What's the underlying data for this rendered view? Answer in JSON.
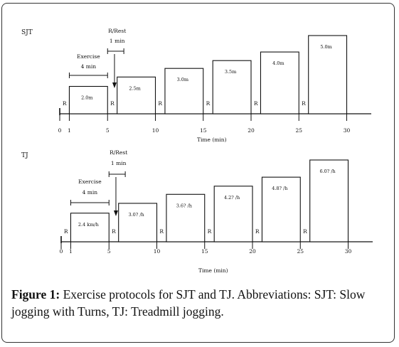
{
  "diagram_data": [
    {
      "id": "sjt",
      "label": "SJT",
      "rest_marker": "R",
      "axis_ticks": [
        "0",
        "1",
        "5",
        "10",
        "15",
        "20",
        "25",
        "30"
      ],
      "axis_label": "Time (min)",
      "exercise_label_line1": "Exercise",
      "exercise_label_line2": "4 min",
      "rest_label_line1": "R/Rest",
      "rest_label_line2": "1 min",
      "segments": [
        {
          "start": 0,
          "end": 1,
          "kind": "rest"
        },
        {
          "start": 1,
          "end": 5,
          "kind": "exercise",
          "label": "2.0m",
          "level": 0.35
        },
        {
          "start": 5,
          "end": 6,
          "kind": "rest"
        },
        {
          "start": 6,
          "end": 10,
          "kind": "exercise",
          "label": "2.5m",
          "level": 0.47
        },
        {
          "start": 10,
          "end": 11,
          "kind": "rest"
        },
        {
          "start": 11,
          "end": 15,
          "kind": "exercise",
          "label": "3.0m",
          "level": 0.58
        },
        {
          "start": 15,
          "end": 16,
          "kind": "rest"
        },
        {
          "start": 16,
          "end": 20,
          "kind": "exercise",
          "label": "3.5m",
          "level": 0.68
        },
        {
          "start": 20,
          "end": 21,
          "kind": "rest"
        },
        {
          "start": 21,
          "end": 25,
          "kind": "exercise",
          "label": "4.0m",
          "level": 0.79
        },
        {
          "start": 25,
          "end": 26,
          "kind": "rest"
        },
        {
          "start": 26,
          "end": 30,
          "kind": "exercise",
          "label": "5.0m",
          "level": 1.0
        }
      ]
    },
    {
      "id": "tj",
      "label": "TJ",
      "rest_marker": "R",
      "axis_ticks": [
        "0",
        "1",
        "5",
        "10",
        "15",
        "20",
        "25",
        "30"
      ],
      "axis_label": "Time (min)",
      "exercise_label_line1": "Exercise",
      "exercise_label_line2": "4 min",
      "rest_label_line1": "R/Rest",
      "rest_label_line2": "1 min",
      "segments": [
        {
          "start": 0,
          "end": 1,
          "kind": "rest"
        },
        {
          "start": 1,
          "end": 5,
          "kind": "exercise",
          "label": "2.4 km/h",
          "level": 0.35
        },
        {
          "start": 5,
          "end": 6,
          "kind": "rest"
        },
        {
          "start": 6,
          "end": 10,
          "kind": "exercise",
          "label": "3.0? /h",
          "level": 0.47
        },
        {
          "start": 10,
          "end": 11,
          "kind": "rest"
        },
        {
          "start": 11,
          "end": 15,
          "kind": "exercise",
          "label": "3.6? /h",
          "level": 0.58
        },
        {
          "start": 15,
          "end": 16,
          "kind": "rest"
        },
        {
          "start": 16,
          "end": 20,
          "kind": "exercise",
          "label": "4.2? /h",
          "level": 0.68
        },
        {
          "start": 20,
          "end": 21,
          "kind": "rest"
        },
        {
          "start": 21,
          "end": 25,
          "kind": "exercise",
          "label": "4.8? /h",
          "level": 0.79
        },
        {
          "start": 25,
          "end": 26,
          "kind": "rest"
        },
        {
          "start": 26,
          "end": 30,
          "kind": "exercise",
          "label": "6.0? /h",
          "level": 1.0
        }
      ]
    }
  ],
  "caption": {
    "lead": "Figure 1:",
    "text": " Exercise protocols for SJT and TJ. Abbreviations: SJT: Slow jogging with Turns, TJ: Treadmill jogging."
  }
}
